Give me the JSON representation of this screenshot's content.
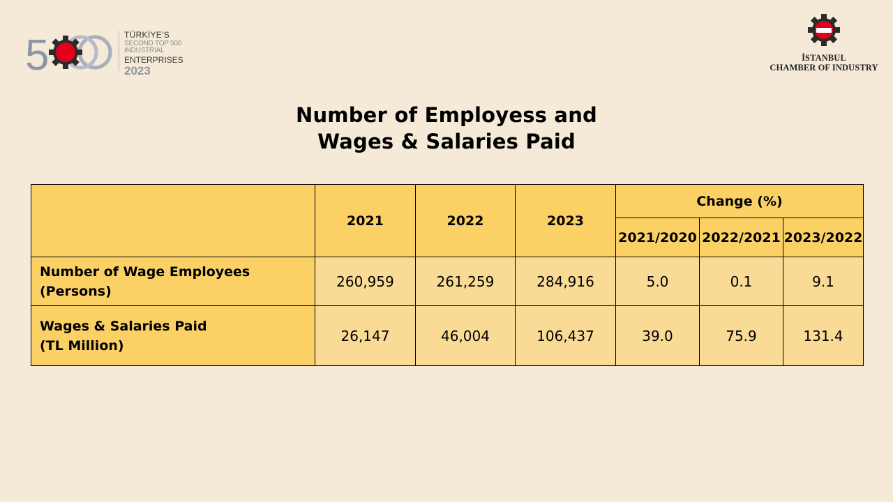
{
  "header_left": {
    "logo_number": "500",
    "logo_badge": "İSO",
    "line1": "TÜRKİYE'S",
    "line2": "SECOND TOP 500 INDUSTRIAL",
    "line3": "ENTERPRISES",
    "line4": "2023"
  },
  "header_right": {
    "logo_badge": "İSO",
    "name_line1": "İSTANBUL",
    "name_line2": "CHAMBER OF INDUSTRY"
  },
  "title": {
    "line1": "Number of Employess and",
    "line2": "Wages & Salaries Paid"
  },
  "table": {
    "year_columns": [
      "2021",
      "2022",
      "2023"
    ],
    "change_header": "Change (%)",
    "change_columns": [
      "2021/2020",
      "2022/2021",
      "2023/2022"
    ],
    "rows": [
      {
        "label_lines": [
          "Number of Wage Employees (Persons)"
        ],
        "values": [
          "260,959",
          "261,259",
          "284,916"
        ],
        "changes": [
          "5.0",
          "0.1",
          "9.1"
        ]
      },
      {
        "label_lines": [
          "Wages & Salaries Paid",
          "(TL Million)"
        ],
        "values": [
          "26,147",
          "46,004",
          "106,437"
        ],
        "changes": [
          "39.0",
          "75.9",
          "131.4"
        ]
      }
    ]
  },
  "colors": {
    "background": "#f4ead7",
    "header_fill": "#fbd165",
    "value_fill": "#fadb96",
    "brand_red": "#e3001b"
  }
}
